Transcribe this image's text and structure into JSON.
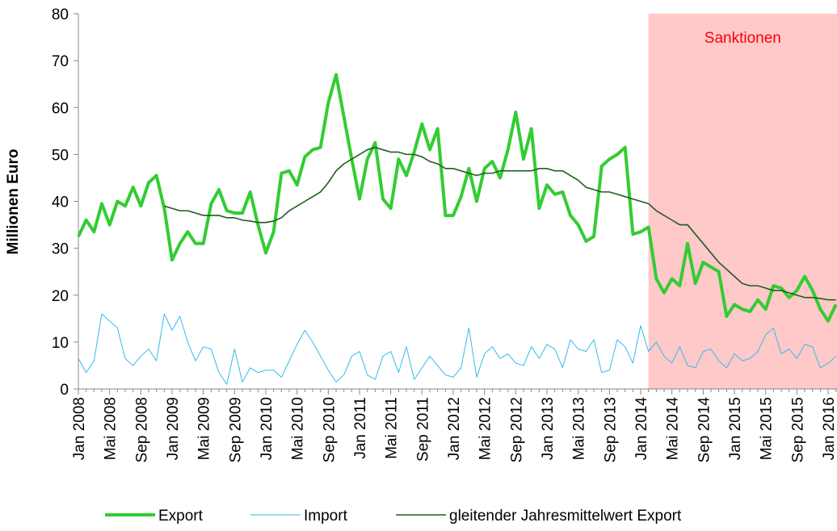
{
  "chart_data": {
    "type": "line",
    "y_label": "Millionen Euro",
    "ylim": [
      0,
      80
    ],
    "yticks": [
      0,
      10,
      20,
      30,
      40,
      50,
      60,
      70,
      80
    ],
    "grid": false,
    "legend": "bottom",
    "region": {
      "label": "Sanktionen",
      "start": 73,
      "color": "#ffc9c9",
      "label_color": "#ff0000"
    },
    "categories": [
      "Jan 2008",
      null,
      null,
      null,
      "Mai 2008",
      null,
      null,
      null,
      "Sep 2008",
      null,
      null,
      null,
      "Jan 2009",
      null,
      null,
      null,
      "Mai 2009",
      null,
      null,
      null,
      "Sep 2009",
      null,
      null,
      null,
      "Jan 2010",
      null,
      null,
      null,
      "Mai 2010",
      null,
      null,
      null,
      "Sep 2010",
      null,
      null,
      null,
      "Jan 2011",
      null,
      null,
      null,
      "Mai 2011",
      null,
      null,
      null,
      "Sep 2011",
      null,
      null,
      null,
      "Jan 2012",
      null,
      null,
      null,
      "Mai 2012",
      null,
      null,
      null,
      "Sep 2012",
      null,
      null,
      null,
      "Jan 2013",
      null,
      null,
      null,
      "Mai 2013",
      null,
      null,
      null,
      "Sep 2013",
      null,
      null,
      null,
      "Jan 2014",
      null,
      null,
      null,
      "Mai 2014",
      null,
      null,
      null,
      "Sep 2014",
      null,
      null,
      null,
      "Jan 2015",
      null,
      null,
      null,
      "Mai 2015",
      null,
      null,
      null,
      "Sep 2015",
      null,
      null,
      null,
      "Jan 2016",
      null
    ],
    "series": [
      {
        "name": "Export",
        "color": "#33cc33",
        "width": 4,
        "values": [
          32.5,
          36,
          33.5,
          39.5,
          35,
          40,
          39,
          43,
          39,
          44,
          45.5,
          38.5,
          27.5,
          31,
          33.5,
          31,
          31,
          39.5,
          42.5,
          38,
          37.5,
          37.5,
          42,
          35,
          29,
          33.5,
          46,
          46.5,
          43.5,
          49.5,
          51,
          51.5,
          61,
          67,
          58,
          49,
          40.5,
          49,
          52.5,
          40.5,
          38.5,
          49,
          45.5,
          50.5,
          56.5,
          51,
          55.5,
          37,
          37,
          41,
          47,
          40,
          47,
          48.5,
          45,
          51,
          59,
          49,
          55.5,
          38.5,
          43.5,
          41.5,
          42,
          37,
          35,
          31.5,
          32.5,
          47.5,
          49,
          50,
          51.5,
          33,
          33.5,
          34.5,
          23.5,
          20.5,
          23.5,
          22,
          31,
          22.5,
          27,
          26,
          25,
          15.5,
          18,
          17,
          16.5,
          19,
          17,
          22,
          21.5,
          19.5,
          21,
          24,
          21,
          17,
          14.5,
          18
        ]
      },
      {
        "name": "Import",
        "color": "#33bbee",
        "width": 1,
        "values": [
          6.5,
          3.5,
          6,
          16,
          14.5,
          13,
          6.5,
          5,
          7,
          8.5,
          6,
          16,
          12.5,
          15.5,
          10,
          6,
          9,
          8.5,
          3.5,
          1,
          8.5,
          1.5,
          4.5,
          3.5,
          4,
          4,
          2.5,
          6,
          9.5,
          12.5,
          10,
          7,
          4,
          1.5,
          3,
          7,
          8,
          3,
          2,
          7,
          8,
          3.5,
          9,
          2,
          4.5,
          7,
          5,
          3,
          2.5,
          4.5,
          13,
          2.5,
          7.5,
          9,
          6.5,
          7.5,
          5.5,
          5,
          9,
          6.5,
          9.5,
          8.5,
          4.5,
          10.5,
          8.5,
          8,
          10.5,
          3.5,
          4,
          10.5,
          9,
          5.5,
          13.5,
          8,
          10,
          7,
          5.5,
          9,
          5,
          4.5,
          8,
          8.5,
          6,
          4.5,
          7.5,
          6,
          6.5,
          8,
          11.5,
          13,
          7.5,
          8.5,
          6.5,
          9.5,
          9,
          4.5,
          5.5,
          7
        ]
      },
      {
        "name": "gleitender Jahresmittelwert Export",
        "color": "#1e5e1e",
        "width": 1.6,
        "values": [
          null,
          null,
          null,
          null,
          null,
          null,
          null,
          null,
          null,
          null,
          null,
          39,
          38.5,
          38,
          38,
          37.5,
          37,
          37,
          37,
          36.5,
          36.5,
          36,
          35.8,
          35.5,
          35.5,
          35.8,
          36.5,
          38,
          39,
          40,
          41,
          42,
          44,
          46.5,
          48,
          49,
          50,
          51,
          51.5,
          51,
          50.5,
          50.5,
          50,
          50,
          49.5,
          48.5,
          48,
          47,
          47,
          46.5,
          46,
          45.5,
          46,
          46,
          46.5,
          46.5,
          46.5,
          46.5,
          46.5,
          47,
          47,
          46.5,
          46.5,
          45.5,
          44.5,
          43,
          42.5,
          42,
          42,
          41.5,
          41,
          40.5,
          40,
          39.5,
          38,
          37,
          36,
          35,
          35,
          33,
          31,
          29,
          27,
          25.5,
          24,
          22.5,
          22,
          22,
          21.5,
          21,
          21,
          20.5,
          20,
          19.5,
          19.5,
          19.3,
          19,
          19
        ]
      }
    ]
  }
}
